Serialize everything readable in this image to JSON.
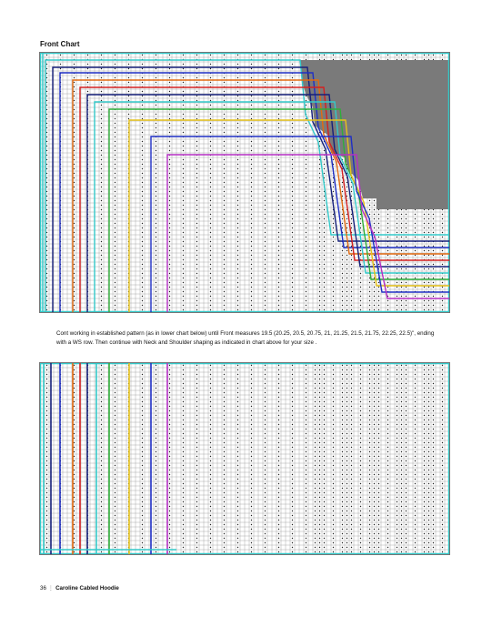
{
  "page": {
    "chart_title": "Front Chart",
    "instruction": "Cont working in established pattern (as in lower chart below) until Front measures 19.5 (20.25, 20.5, 20.75, 21, 21.25, 21.5, 21.75, 22.25, 22.5)\", ending with a WS row. Then continue with Neck and Shoulder shaping as indicated in chart above for your size .",
    "page_number": "36",
    "book_title": "Caroline Cabled Hoodie"
  },
  "colors": {
    "grid": "#9a9a9a",
    "shaded": "#7a7a7a",
    "teal": "#33c9c9",
    "blue": "#1f2fc4",
    "darkblue": "#16207a",
    "orange": "#e26a10",
    "red": "#d42020",
    "green": "#2fae3a",
    "yellow": "#e6c21a",
    "purple": "#b52fc4"
  }
}
